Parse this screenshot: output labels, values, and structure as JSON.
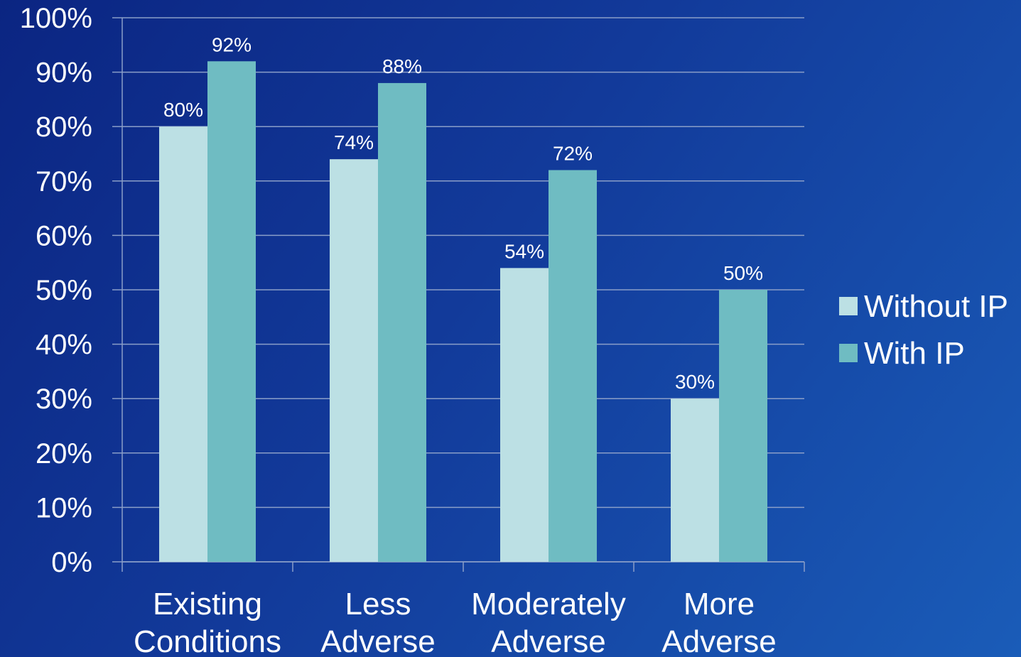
{
  "chart_data": {
    "type": "bar",
    "categories": [
      [
        "Existing",
        "Conditions"
      ],
      [
        "Less",
        "Adverse"
      ],
      [
        "Moderately",
        "Adverse"
      ],
      [
        "More",
        "Adverse"
      ]
    ],
    "series": [
      {
        "name": "Without IP",
        "values": [
          80,
          74,
          54,
          30
        ],
        "labels": [
          "80%",
          "74%",
          "54%",
          "30%"
        ],
        "color": "#bce0e4"
      },
      {
        "name": "With IP",
        "values": [
          92,
          88,
          72,
          50
        ],
        "labels": [
          "92%",
          "88%",
          "72%",
          "50%"
        ],
        "color": "#6fbcc2"
      }
    ],
    "y_ticks": [
      "0%",
      "10%",
      "20%",
      "30%",
      "40%",
      "50%",
      "60%",
      "70%",
      "80%",
      "90%",
      "100%"
    ],
    "ylim": [
      0,
      100
    ],
    "grid": true,
    "legend_position": "right",
    "gridline_color": "#8a9ec8",
    "text_color": "#ffffff"
  }
}
